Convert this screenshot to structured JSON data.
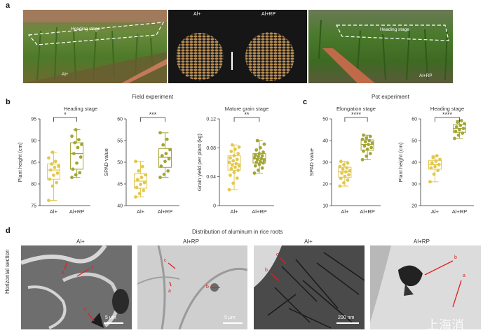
{
  "panel_a": {
    "label": "a",
    "left_photo": {
      "heading_label": "Heading stage",
      "treatment": "Al+"
    },
    "grain_left": "Al+",
    "grain_right": "Al+RP",
    "right_photo": {
      "heading_label": "Heading stage",
      "treatment": "Al+RP"
    }
  },
  "panel_b": {
    "label": "b",
    "group_title": "Field experiment"
  },
  "panel_c": {
    "label": "c",
    "group_title": "Pot experiment"
  },
  "panel_d": {
    "label": "d",
    "title": "Distribution of aluminum in rice roots",
    "row_label": "Horizontal section",
    "images": [
      {
        "title": "Al+",
        "scale": "5 μm",
        "markers": [
          "a",
          "c",
          "c"
        ]
      },
      {
        "title": "Al+RP",
        "scale": "5 μm",
        "markers": [
          "c",
          "a",
          "b"
        ]
      },
      {
        "title": "Al+",
        "scale": "200 nm",
        "markers": [
          "c",
          "b"
        ]
      },
      {
        "title": "Al+RP",
        "scale": "",
        "markers": [
          "b",
          "a"
        ]
      }
    ],
    "watermark": "上海消"
  },
  "colors": {
    "al": "#e2c84e",
    "alrp": "#a3a637"
  },
  "chart_data": [
    {
      "type": "box",
      "title": "Heading stage",
      "ylabel": "Plant height (cm)",
      "categories": [
        "Al+",
        "Al+RP"
      ],
      "ylim": [
        75,
        95
      ],
      "yticks": [
        75,
        80,
        85,
        90,
        95
      ],
      "significance": "*",
      "series": [
        {
          "values": [
            76.2,
            79.5,
            80.3,
            81.1,
            82.0,
            82.5,
            83.2,
            83.8,
            84.1,
            84.6,
            85.2,
            86.0,
            87.3
          ]
        },
        {
          "values": [
            81.5,
            82.1,
            82.6,
            83.4,
            84.8,
            86.2,
            87.0,
            88.4,
            89.1,
            89.5,
            90.2,
            91.0,
            92.5
          ]
        }
      ]
    },
    {
      "type": "box",
      "title": "",
      "ylabel": "SPAD value",
      "categories": [
        "Al+",
        "Al+RP"
      ],
      "ylim": [
        40,
        60
      ],
      "yticks": [
        40,
        45,
        50,
        55,
        60
      ],
      "significance": "***",
      "series": [
        {
          "values": [
            42.0,
            42.8,
            43.5,
            44.2,
            44.9,
            45.3,
            46.0,
            46.5,
            47.1,
            48.0,
            49.0,
            50.2
          ]
        },
        {
          "values": [
            46.5,
            47.2,
            48.0,
            49.1,
            50.2,
            50.8,
            51.5,
            52.0,
            52.9,
            54.0,
            55.3,
            56.8
          ]
        }
      ]
    },
    {
      "type": "box",
      "title": "Mature grain stage",
      "ylabel": "Grain yield per plant (kg)",
      "categories": [
        "Al+",
        "Al+RP"
      ],
      "ylim": [
        0,
        0.12
      ],
      "yticks": [
        0,
        0.04,
        0.08,
        0.12
      ],
      "significance": "**",
      "series": [
        {
          "values": [
            0.022,
            0.031,
            0.038,
            0.042,
            0.046,
            0.049,
            0.051,
            0.053,
            0.055,
            0.056,
            0.058,
            0.06,
            0.062,
            0.064,
            0.066,
            0.069,
            0.072,
            0.075,
            0.078,
            0.081,
            0.084
          ]
        },
        {
          "values": [
            0.045,
            0.049,
            0.052,
            0.055,
            0.057,
            0.059,
            0.06,
            0.061,
            0.063,
            0.064,
            0.065,
            0.066,
            0.068,
            0.069,
            0.07,
            0.072,
            0.074,
            0.077,
            0.08,
            0.085,
            0.09
          ]
        }
      ]
    },
    {
      "type": "box",
      "title": "Elongation stage",
      "ylabel": "SPAD value",
      "categories": [
        "Al+",
        "Al+RP"
      ],
      "ylim": [
        10,
        50
      ],
      "yticks": [
        10,
        20,
        30,
        40,
        50
      ],
      "significance": "****",
      "series": [
        {
          "values": [
            19.0,
            20.5,
            21.8,
            22.6,
            23.5,
            24.2,
            25.0,
            25.6,
            26.1,
            26.8,
            27.4,
            28.0,
            28.9,
            29.6,
            30.4
          ]
        },
        {
          "values": [
            31.2,
            32.8,
            34.0,
            35.1,
            36.0,
            36.8,
            37.5,
            38.2,
            38.9,
            39.4,
            40.0,
            40.6,
            41.2,
            41.9,
            42.5
          ]
        }
      ]
    },
    {
      "type": "box",
      "title": "Heading stage",
      "ylabel": "Plant height (cm)",
      "categories": [
        "Al+",
        "Al+RP"
      ],
      "ylim": [
        20,
        60
      ],
      "yticks": [
        20,
        30,
        40,
        50,
        60
      ],
      "significance": "****",
      "series": [
        {
          "values": [
            31.0,
            34.5,
            36.2,
            37.4,
            38.0,
            38.9,
            39.8,
            40.5,
            41.3,
            42.2,
            43.0
          ]
        },
        {
          "values": [
            51.0,
            52.5,
            53.4,
            54.2,
            55.0,
            55.6,
            56.3,
            57.0,
            57.8,
            58.5,
            59.2
          ]
        }
      ]
    }
  ]
}
